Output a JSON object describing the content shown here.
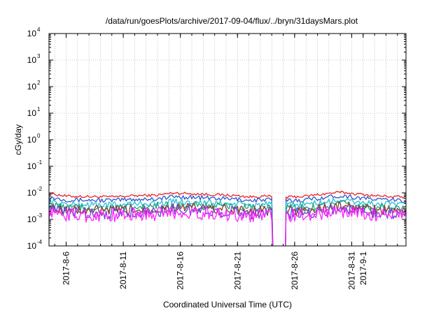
{
  "chart_data": {
    "type": "line",
    "title": "/data/run/goesPlots/archive/2017-09-04/flux/../bryn/31daysMars.plot",
    "xlabel": "Coordinated Universal Time (UTC)",
    "ylabel": "cGy/day",
    "yscale": "log",
    "ylim": [
      0.0001,
      10000
    ],
    "xlim": [
      "2017-08-04T12:00",
      "2017-09-04T18:00"
    ],
    "grid": true,
    "y_ticks": [
      {
        "value": 0.0001,
        "base": "10",
        "exp": "-4"
      },
      {
        "value": 0.001,
        "base": "10",
        "exp": "-3"
      },
      {
        "value": 0.01,
        "base": "10",
        "exp": "-2"
      },
      {
        "value": 0.1,
        "base": "10",
        "exp": "-1"
      },
      {
        "value": 1,
        "base": "10",
        "exp": "0"
      },
      {
        "value": 10,
        "base": "10",
        "exp": "1"
      },
      {
        "value": 100,
        "base": "10",
        "exp": "2"
      },
      {
        "value": 1000,
        "base": "10",
        "exp": "3"
      },
      {
        "value": 10000,
        "base": "10",
        "exp": "4"
      }
    ],
    "x_ticks": [
      {
        "date": "2017-08-06",
        "label": "2017-8-6"
      },
      {
        "date": "2017-08-11",
        "label": "2017-8-11"
      },
      {
        "date": "2017-08-16",
        "label": "2017-8-16"
      },
      {
        "date": "2017-08-21",
        "label": "2017-8-21"
      },
      {
        "date": "2017-08-26",
        "label": "2017-8-26"
      },
      {
        "date": "2017-08-31",
        "label": "2017-8-31"
      },
      {
        "date": "2017-09-01",
        "label": "2017-9-1"
      }
    ],
    "x_minor_every_days": 1,
    "data_gap": [
      "2017-08-24T02:00",
      "2017-08-25T06:00"
    ],
    "series": [
      {
        "color": "#e8262b",
        "x": [
          "2017-08-04T12:00",
          "2017-08-06T00:00",
          "2017-08-08T00:00",
          "2017-08-10T00:00",
          "2017-08-12T00:00",
          "2017-08-14T00:00",
          "2017-08-15T12:00",
          "2017-08-17T00:00",
          "2017-08-19T00:00",
          "2017-08-21T00:00",
          "2017-08-22T00:00",
          "2017-08-24T00:00",
          "2017-08-25T06:00",
          "2017-08-27T00:00",
          "2017-08-29T00:00",
          "2017-08-30T00:00",
          "2017-08-31T12:00",
          "2017-09-02T00:00",
          "2017-09-04T18:00"
        ],
        "values": [
          0.0095,
          0.0075,
          0.0072,
          0.007,
          0.0078,
          0.0082,
          0.01,
          0.0092,
          0.0085,
          0.0078,
          0.007,
          0.0075,
          0.0068,
          0.0075,
          0.0095,
          0.0105,
          0.009,
          0.0078,
          0.0068
        ]
      },
      {
        "color": "#2a59d1",
        "x": [
          "2017-08-04T12:00",
          "2017-08-06T00:00",
          "2017-08-08T00:00",
          "2017-08-10T00:00",
          "2017-08-12T00:00",
          "2017-08-14T00:00",
          "2017-08-15T12:00",
          "2017-08-17T00:00",
          "2017-08-19T00:00",
          "2017-08-21T00:00",
          "2017-08-22T00:00",
          "2017-08-24T00:00",
          "2017-08-25T06:00",
          "2017-08-27T00:00",
          "2017-08-29T00:00",
          "2017-08-30T00:00",
          "2017-08-31T12:00",
          "2017-09-02T00:00",
          "2017-09-04T18:00"
        ],
        "values": [
          0.0068,
          0.0055,
          0.0053,
          0.0052,
          0.0057,
          0.006,
          0.0072,
          0.0068,
          0.0062,
          0.0057,
          0.0052,
          0.0055,
          0.005,
          0.0055,
          0.007,
          0.0078,
          0.0066,
          0.0057,
          0.005
        ]
      },
      {
        "color": "#2bbfd6",
        "x": [
          "2017-08-04T12:00",
          "2017-08-06T00:00",
          "2017-08-08T00:00",
          "2017-08-10T00:00",
          "2017-08-12T00:00",
          "2017-08-14T00:00",
          "2017-08-15T12:00",
          "2017-08-17T00:00",
          "2017-08-19T00:00",
          "2017-08-21T00:00",
          "2017-08-22T00:00",
          "2017-08-24T00:00",
          "2017-08-25T06:00",
          "2017-08-27T00:00",
          "2017-08-29T00:00",
          "2017-08-30T00:00",
          "2017-08-31T12:00",
          "2017-09-02T00:00",
          "2017-09-04T18:00"
        ],
        "values": [
          0.0045,
          0.0037,
          0.0036,
          0.0035,
          0.0038,
          0.004,
          0.0048,
          0.0045,
          0.0041,
          0.0038,
          0.0035,
          0.0037,
          0.0034,
          0.0037,
          0.0046,
          0.0052,
          0.0044,
          0.0038,
          0.0034
        ]
      },
      {
        "color": "#1aa87e",
        "x": [
          "2017-08-04T12:00",
          "2017-08-06T00:00",
          "2017-08-08T00:00",
          "2017-08-10T00:00",
          "2017-08-12T00:00",
          "2017-08-14T00:00",
          "2017-08-15T12:00",
          "2017-08-17T00:00",
          "2017-08-19T00:00",
          "2017-08-21T00:00",
          "2017-08-22T00:00",
          "2017-08-24T00:00",
          "2017-08-25T06:00",
          "2017-08-27T00:00",
          "2017-08-29T00:00",
          "2017-08-30T00:00",
          "2017-08-31T12:00",
          "2017-09-02T00:00",
          "2017-09-04T18:00"
        ],
        "values": [
          0.0033,
          0.0028,
          0.0027,
          0.0026,
          0.0028,
          0.003,
          0.0035,
          0.0033,
          0.003,
          0.0028,
          0.0026,
          0.0027,
          0.0025,
          0.0027,
          0.0034,
          0.0038,
          0.0032,
          0.0028,
          0.0025
        ]
      },
      {
        "color": "#8a3a2e",
        "x": [
          "2017-08-04T12:00",
          "2017-08-06T00:00",
          "2017-08-08T00:00",
          "2017-08-10T00:00",
          "2017-08-12T00:00",
          "2017-08-14T00:00",
          "2017-08-15T12:00",
          "2017-08-17T00:00",
          "2017-08-19T00:00",
          "2017-08-21T00:00",
          "2017-08-22T00:00",
          "2017-08-24T00:00",
          "2017-08-25T06:00",
          "2017-08-27T00:00",
          "2017-08-29T00:00",
          "2017-08-30T00:00",
          "2017-08-31T12:00",
          "2017-09-02T00:00",
          "2017-09-04T18:00"
        ],
        "values": [
          0.0027,
          0.0023,
          0.0022,
          0.0021,
          0.0023,
          0.0024,
          0.0029,
          0.0027,
          0.0025,
          0.0023,
          0.0021,
          0.0022,
          0.002,
          0.0022,
          0.0028,
          0.0031,
          0.0026,
          0.0023,
          0.002
        ]
      },
      {
        "color": "#6e3fd0",
        "x": [
          "2017-08-04T12:00",
          "2017-08-06T00:00",
          "2017-08-08T00:00",
          "2017-08-10T00:00",
          "2017-08-12T00:00",
          "2017-08-14T00:00",
          "2017-08-15T12:00",
          "2017-08-17T00:00",
          "2017-08-19T00:00",
          "2017-08-21T00:00",
          "2017-08-22T00:00",
          "2017-08-24T00:00",
          "2017-08-25T06:00",
          "2017-08-27T00:00",
          "2017-08-29T00:00",
          "2017-08-30T00:00",
          "2017-08-31T12:00",
          "2017-09-02T00:00",
          "2017-09-04T18:00"
        ],
        "values": [
          0.0022,
          0.0019,
          0.0018,
          0.0017,
          0.0019,
          0.002,
          0.0024,
          0.0022,
          0.002,
          0.0019,
          0.0017,
          0.0018,
          0.0016,
          0.0018,
          0.0023,
          0.0026,
          0.0021,
          0.0019,
          0.0016
        ]
      },
      {
        "color": "#ff22ff",
        "x": [
          "2017-08-04T12:00",
          "2017-08-06T00:00",
          "2017-08-08T00:00",
          "2017-08-10T00:00",
          "2017-08-12T00:00",
          "2017-08-14T00:00",
          "2017-08-15T12:00",
          "2017-08-17T00:00",
          "2017-08-19T00:00",
          "2017-08-21T00:00",
          "2017-08-22T00:00",
          "2017-08-24T00:00",
          "2017-08-25T06:00",
          "2017-08-27T00:00",
          "2017-08-29T00:00",
          "2017-08-30T00:00",
          "2017-08-31T12:00",
          "2017-09-02T00:00",
          "2017-09-04T18:00"
        ],
        "values": [
          0.0018,
          0.0015,
          0.0014,
          0.0014,
          0.0015,
          0.0016,
          0.0019,
          0.0018,
          0.0016,
          0.0015,
          0.0014,
          0.0015,
          0.0013,
          0.0015,
          0.0018,
          0.002,
          0.0017,
          0.0015,
          0.0013
        ]
      }
    ]
  }
}
